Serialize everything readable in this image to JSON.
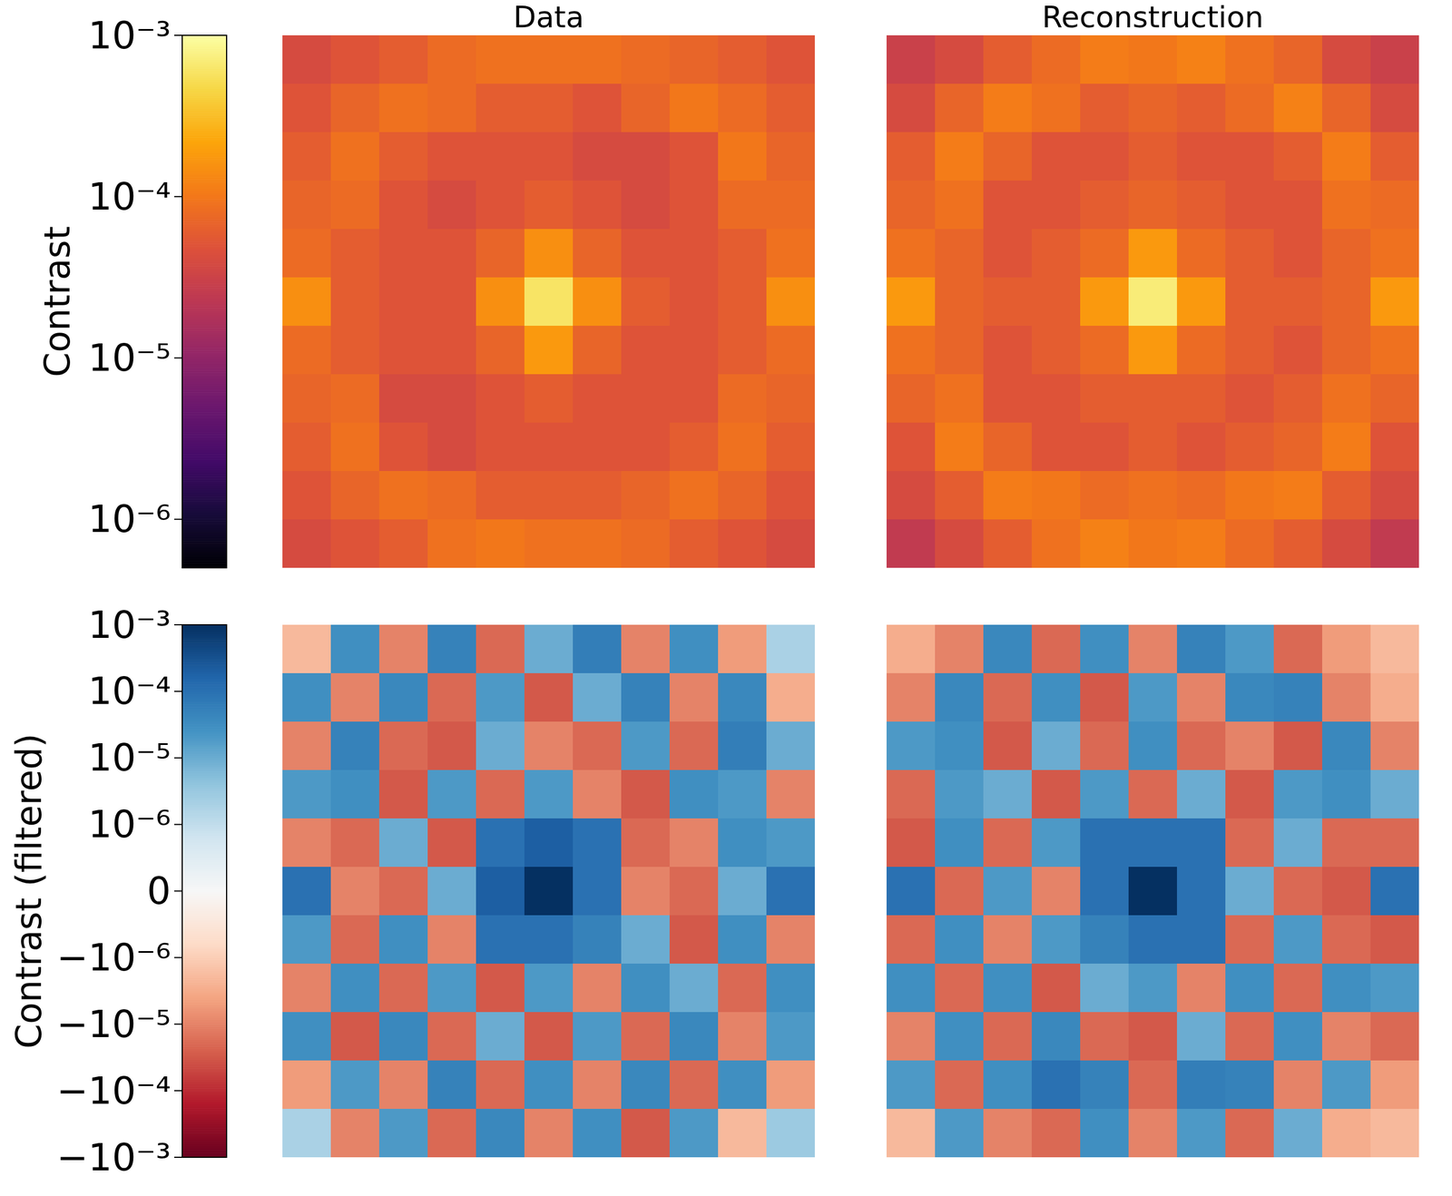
{
  "chart_data": [
    {
      "type": "heatmap",
      "tick_labels": false,
      "colorbar": {
        "label": "Contrast",
        "range": [
          5e-07,
          0.001
        ],
        "log": true,
        "color": "inferno",
        "ticks": [
          {
            "value": 1e-06,
            "label": "10⁻⁶"
          },
          {
            "value": 1e-05,
            "label": "10⁻⁵"
          },
          {
            "value": 0.0001,
            "label": "10⁻⁴"
          },
          {
            "value": 0.001,
            "label": "10⁻³"
          }
        ]
      },
      "panels": [
        {
          "title": "Data",
          "cells": [
            [
              4e-05,
              5e-05,
              6e-05,
              8e-05,
              9e-05,
              9e-05,
              9e-05,
              8e-05,
              7e-05,
              6e-05,
              5e-05
            ],
            [
              5e-05,
              7e-05,
              9e-05,
              8e-05,
              6e-05,
              6e-05,
              5e-05,
              7e-05,
              0.0001,
              8e-05,
              6e-05
            ],
            [
              6e-05,
              9e-05,
              6e-05,
              5e-05,
              5e-05,
              5e-05,
              4e-05,
              4e-05,
              5e-05,
              0.0001,
              7e-05
            ],
            [
              7e-05,
              8e-05,
              5e-05,
              4e-05,
              5e-05,
              6e-05,
              5e-05,
              4e-05,
              5e-05,
              8e-05,
              8e-05
            ],
            [
              8e-05,
              6e-05,
              5e-05,
              5e-05,
              7e-05,
              0.00015,
              7e-05,
              5e-05,
              5e-05,
              6e-05,
              9e-05
            ],
            [
              0.00015,
              6e-05,
              5e-05,
              5e-05,
              0.00015,
              0.0006,
              0.00015,
              6e-05,
              5e-05,
              6e-05,
              0.00015
            ],
            [
              8e-05,
              6e-05,
              5e-05,
              5e-05,
              7e-05,
              0.00018,
              7e-05,
              5e-05,
              5e-05,
              6e-05,
              8e-05
            ],
            [
              7e-05,
              8e-05,
              4e-05,
              4e-05,
              5e-05,
              6e-05,
              5e-05,
              5e-05,
              5e-05,
              8e-05,
              7e-05
            ],
            [
              6e-05,
              9e-05,
              5e-05,
              4e-05,
              5e-05,
              5e-05,
              5e-05,
              5e-05,
              6e-05,
              9e-05,
              6e-05
            ],
            [
              5e-05,
              7e-05,
              9e-05,
              8e-05,
              6e-05,
              6e-05,
              6e-05,
              7e-05,
              9e-05,
              7e-05,
              5e-05
            ],
            [
              4e-05,
              5e-05,
              6e-05,
              9e-05,
              0.0001,
              9e-05,
              9e-05,
              8e-05,
              6e-05,
              5e-05,
              4e-05
            ]
          ]
        },
        {
          "title": "Reconstruction",
          "cells": [
            [
              3e-05,
              4e-05,
              6e-05,
              8e-05,
              0.00011,
              0.0001,
              0.00012,
              9e-05,
              7e-05,
              4e-05,
              3e-05
            ],
            [
              4e-05,
              7e-05,
              0.00011,
              9e-05,
              6e-05,
              7e-05,
              6e-05,
              8e-05,
              0.00012,
              7e-05,
              4e-05
            ],
            [
              6e-05,
              0.00011,
              7e-05,
              5e-05,
              5e-05,
              6e-05,
              5e-05,
              5e-05,
              6e-05,
              0.00011,
              6e-05
            ],
            [
              7e-05,
              9e-05,
              5e-05,
              5e-05,
              6e-05,
              7e-05,
              6e-05,
              5e-05,
              5e-05,
              9e-05,
              8e-05
            ],
            [
              9e-05,
              7e-05,
              5e-05,
              6e-05,
              8e-05,
              0.00018,
              8e-05,
              6e-05,
              5e-05,
              7e-05,
              9e-05
            ],
            [
              0.00018,
              7e-05,
              6e-05,
              6e-05,
              0.00018,
              0.0007,
              0.00018,
              6e-05,
              6e-05,
              7e-05,
              0.00018
            ],
            [
              9e-05,
              7e-05,
              5e-05,
              6e-05,
              8e-05,
              0.00018,
              8e-05,
              6e-05,
              5e-05,
              7e-05,
              9e-05
            ],
            [
              7e-05,
              9e-05,
              5e-05,
              5e-05,
              6e-05,
              6e-05,
              6e-05,
              5e-05,
              6e-05,
              9e-05,
              7e-05
            ],
            [
              5e-05,
              0.00011,
              7e-05,
              5e-05,
              5e-05,
              6e-05,
              5e-05,
              6e-05,
              7e-05,
              0.00011,
              5e-05
            ],
            [
              4e-05,
              6e-05,
              0.00011,
              0.0001,
              8e-05,
              9e-05,
              8e-05,
              0.0001,
              0.00011,
              6e-05,
              4e-05
            ],
            [
              2.5e-05,
              4e-05,
              6e-05,
              9e-05,
              0.00012,
              0.0001,
              0.00011,
              8e-05,
              6e-05,
              4e-05,
              2.5e-05
            ]
          ]
        }
      ]
    },
    {
      "type": "heatmap",
      "tick_labels": false,
      "colorbar": {
        "label": "Contrast (filtered)",
        "range": [
          -0.001,
          0.001
        ],
        "log": true,
        "color": "RdBu",
        "ticks": [
          {
            "value": -0.001,
            "label": "−10⁻³"
          },
          {
            "value": -0.0001,
            "label": "−10⁻⁴"
          },
          {
            "value": -1e-05,
            "label": "−10⁻⁵"
          },
          {
            "value": -1e-06,
            "label": "−10⁻⁶"
          },
          0,
          {
            "value": 1e-06,
            "label": "10⁻⁶"
          },
          {
            "value": 1e-05,
            "label": "10⁻⁵"
          },
          {
            "value": 0.0001,
            "label": "10⁻⁴"
          },
          {
            "value": 0.001,
            "label": "10⁻³"
          }
        ]
      },
      "panels": [
        {
          "cells": [
            [
              -2e-06,
              3e-05,
              -1e-05,
              5e-05,
              -2e-05,
              1e-05,
              6e-05,
              -1e-05,
              3e-05,
              -5e-06,
              2e-06
            ],
            [
              3e-05,
              -1e-05,
              4e-05,
              -2e-05,
              2e-05,
              -3e-05,
              1e-05,
              5e-05,
              -1e-05,
              4e-05,
              -3e-06
            ],
            [
              -1e-05,
              5e-05,
              -2e-05,
              -3e-05,
              1e-05,
              -1e-05,
              -2e-05,
              2e-05,
              -2e-05,
              6e-05,
              1e-05
            ],
            [
              2e-05,
              3e-05,
              -3e-05,
              2e-05,
              -2e-05,
              2e-05,
              -1e-05,
              -3e-05,
              3e-05,
              2e-05,
              -1e-05
            ],
            [
              -1e-05,
              -2e-05,
              1e-05,
              -3e-05,
              0.0001,
              0.0002,
              0.0001,
              -2e-05,
              -1e-05,
              3e-05,
              2e-05
            ],
            [
              0.0001,
              -1e-05,
              -2e-05,
              1e-05,
              0.0002,
              0.001,
              0.0001,
              -1e-05,
              -2e-05,
              1e-05,
              0.0001
            ],
            [
              2e-05,
              -2e-05,
              3e-05,
              -1e-05,
              0.0001,
              0.0001,
              5e-05,
              1e-05,
              -3e-05,
              3e-05,
              -1e-05
            ],
            [
              -1e-05,
              3e-05,
              -2e-05,
              2e-05,
              -3e-05,
              2e-05,
              -1e-05,
              3e-05,
              1e-05,
              -2e-05,
              3e-05
            ],
            [
              3e-05,
              -3e-05,
              4e-05,
              -2e-05,
              1e-05,
              -3e-05,
              2e-05,
              -2e-05,
              4e-05,
              -1e-05,
              2e-05
            ],
            [
              -5e-06,
              2e-05,
              -1e-05,
              5e-05,
              -2e-05,
              3e-05,
              -1e-05,
              4e-05,
              -2e-05,
              3e-05,
              -5e-06
            ],
            [
              2e-06,
              -1e-05,
              2e-05,
              -2e-05,
              4e-05,
              -1e-05,
              3e-05,
              -3e-05,
              2e-05,
              -2e-06,
              3e-06
            ]
          ]
        },
        {
          "cells": [
            [
              -3e-06,
              -1e-05,
              4e-05,
              -2e-05,
              3e-05,
              -1e-05,
              5e-05,
              2e-05,
              -2e-05,
              -5e-06,
              -2e-06
            ],
            [
              -1e-05,
              4e-05,
              -2e-05,
              3e-05,
              -3e-05,
              2e-05,
              -1e-05,
              4e-05,
              5e-05,
              -1e-05,
              -3e-06
            ],
            [
              2e-05,
              3e-05,
              -3e-05,
              1e-05,
              -2e-05,
              3e-05,
              -2e-05,
              -1e-05,
              -3e-05,
              4e-05,
              -1e-05
            ],
            [
              -2e-05,
              2e-05,
              1e-05,
              -3e-05,
              2e-05,
              -2e-05,
              1e-05,
              -3e-05,
              2e-05,
              3e-05,
              1e-05
            ],
            [
              -3e-05,
              3e-05,
              -2e-05,
              2e-05,
              0.0001,
              0.0001,
              0.0001,
              -2e-05,
              1e-05,
              -2e-05,
              -2e-05
            ],
            [
              0.0001,
              -2e-05,
              2e-05,
              -1e-05,
              0.0001,
              0.001,
              0.0001,
              1e-05,
              -2e-05,
              -3e-05,
              0.0001
            ],
            [
              -2e-05,
              3e-05,
              -1e-05,
              2e-05,
              5e-05,
              0.0001,
              0.0001,
              -2e-05,
              2e-05,
              -2e-05,
              -3e-05
            ],
            [
              3e-05,
              -2e-05,
              3e-05,
              -3e-05,
              1e-05,
              2e-05,
              -1e-05,
              3e-05,
              -2e-05,
              3e-05,
              2e-05
            ],
            [
              -1e-05,
              3e-05,
              -2e-05,
              4e-05,
              -2e-05,
              -3e-05,
              1e-05,
              -2e-05,
              3e-05,
              -1e-05,
              -2e-05
            ],
            [
              2e-05,
              -2e-05,
              3e-05,
              0.0001,
              5e-05,
              -2e-05,
              6e-05,
              5e-05,
              -1e-05,
              2e-05,
              -5e-06
            ],
            [
              -2e-06,
              2e-05,
              -1e-05,
              -2e-05,
              3e-05,
              -1e-05,
              2e-05,
              -2e-05,
              1e-05,
              -3e-06,
              -2e-06
            ]
          ]
        }
      ]
    }
  ]
}
